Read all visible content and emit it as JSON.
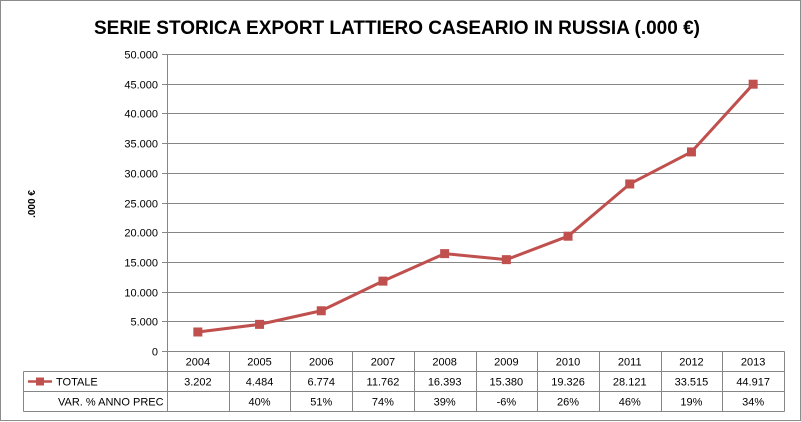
{
  "chart_data": {
    "type": "line",
    "title": "SERIE STORICA EXPORT LATTIERO CASEARIO IN RUSSIA (.000 €)",
    "ylabel": ".000 €",
    "ylim": [
      0,
      50000
    ],
    "y_ticks": [
      "0",
      "5.000",
      "10.000",
      "15.000",
      "20.000",
      "25.000",
      "30.000",
      "35.000",
      "40.000",
      "45.000",
      "50.000"
    ],
    "grid": true,
    "categories": [
      "2004",
      "2005",
      "2006",
      "2007",
      "2008",
      "2009",
      "2010",
      "2011",
      "2012",
      "2013"
    ],
    "series": [
      {
        "name": "TOTALE",
        "color": "#c0504d",
        "values": [
          3202,
          4484,
          6774,
          11762,
          16393,
          15380,
          19326,
          28121,
          33515,
          44917
        ],
        "labels": [
          "3.202",
          "4.484",
          "6.774",
          "11.762",
          "16.393",
          "15.380",
          "19.326",
          "28.121",
          "33.515",
          "44.917"
        ]
      }
    ],
    "data_table": {
      "rows": [
        {
          "label": "TOTALE",
          "values": [
            "3.202",
            "4.484",
            "6.774",
            "11.762",
            "16.393",
            "15.380",
            "19.326",
            "28.121",
            "33.515",
            "44.917"
          ]
        },
        {
          "label": "VAR. % ANNO PREC",
          "values": [
            "",
            "40%",
            "51%",
            "74%",
            "39%",
            "-6%",
            "26%",
            "46%",
            "19%",
            "34%"
          ]
        }
      ]
    }
  }
}
